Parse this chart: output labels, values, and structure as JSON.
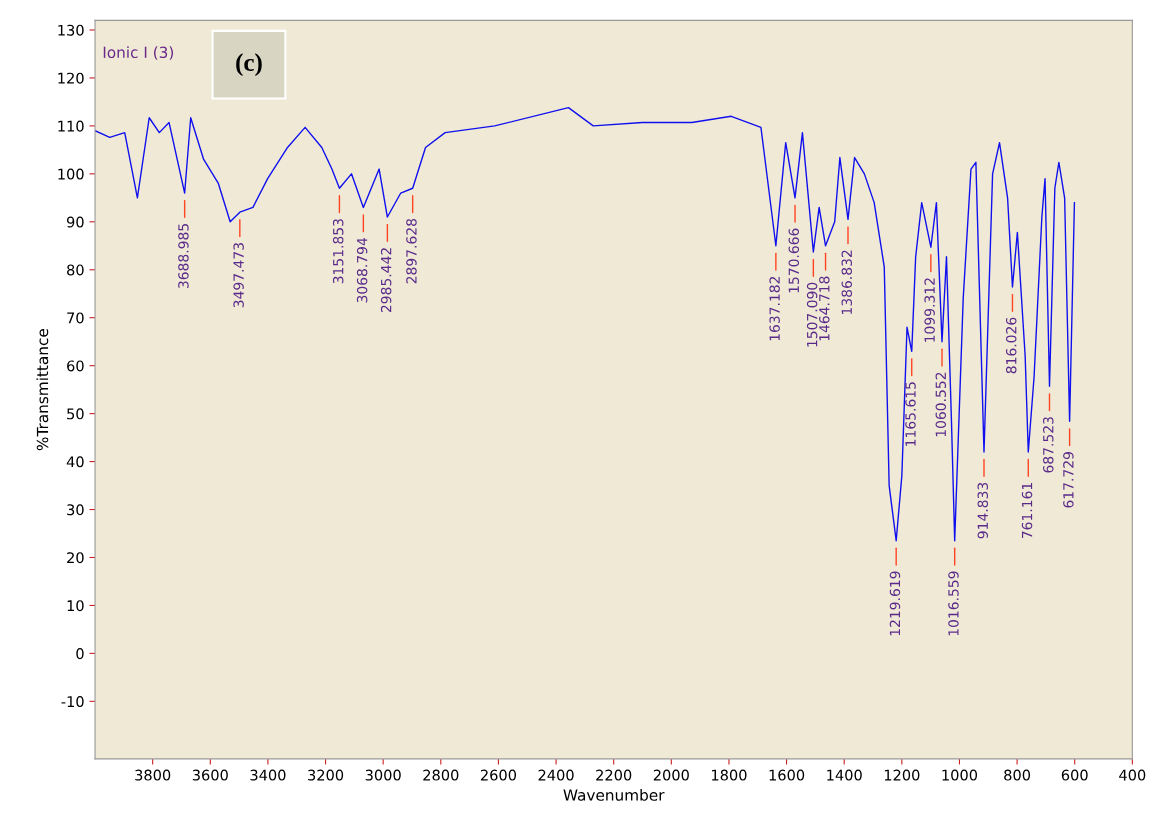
{
  "chart_data": {
    "type": "line",
    "xlabel": "Wavenumber",
    "ylabel": "%Transmittance",
    "xlim": [
      4000,
      400
    ],
    "ylim": [
      -22,
      132
    ],
    "xticks": [
      3800,
      3600,
      3400,
      3200,
      3000,
      2800,
      2600,
      2400,
      2200,
      2000,
      1800,
      1600,
      1400,
      1200,
      1000,
      800,
      600,
      400
    ],
    "yticks": [
      -10,
      0,
      10,
      20,
      30,
      40,
      50,
      60,
      70,
      80,
      90,
      100,
      110,
      120,
      130
    ],
    "grid": false,
    "legend": false,
    "marker": "none",
    "line_style": "solid",
    "series": [
      {
        "color": "#1010ee",
        "x": [
          4000,
          3949,
          3897,
          3853,
          3812,
          3777,
          3743,
          3688.985,
          3668,
          3623,
          3572,
          3531,
          3497.473,
          3452,
          3401,
          3332,
          3271,
          3213,
          3178,
          3151.853,
          3110,
          3068.794,
          3014,
          2985.442,
          2939,
          2897.628,
          2853,
          2785,
          2613,
          2357,
          2271,
          2100,
          1929,
          1792,
          1689,
          1637.182,
          1603,
          1570.666,
          1545,
          1507.09,
          1487,
          1464.718,
          1433,
          1415,
          1386.832,
          1364,
          1330,
          1296,
          1261,
          1244,
          1219.619,
          1200,
          1182,
          1165.615,
          1152,
          1131,
          1099.312,
          1080,
          1060.552,
          1045,
          1028,
          1016.559,
          987,
          960,
          943,
          914.833,
          885,
          861,
          833,
          816.026,
          799,
          772,
          761.161,
          741,
          714,
          703,
          687.523,
          669,
          655,
          635,
          617.729,
          601
        ],
        "values": [
          109,
          107.6,
          108.6,
          95,
          111.7,
          108.6,
          110.7,
          96,
          111.7,
          103,
          98,
          90,
          92,
          93,
          99,
          105.5,
          109.7,
          105.5,
          101,
          97,
          100,
          93,
          101,
          91,
          96,
          97,
          105.5,
          108.6,
          110,
          113.8,
          110,
          110.7,
          110.7,
          112,
          109.7,
          85,
          106.5,
          95,
          108.6,
          83.7,
          93,
          85,
          90,
          103.4,
          90.5,
          103.4,
          100,
          94,
          80.6,
          35,
          23.5,
          37,
          68,
          63,
          82.7,
          94,
          84.7,
          94,
          65,
          82.7,
          49,
          23.5,
          74,
          101,
          102.4,
          42,
          100,
          106.5,
          95,
          76.4,
          87.8,
          62,
          42,
          57.7,
          91,
          99,
          55.7,
          97,
          102.4,
          95,
          48.4,
          94
        ]
      }
    ],
    "annotations": [
      "Ionic I (3)",
      "(c)",
      {
        "text": "3688.985",
        "x": 3688.985,
        "y": 96
      },
      {
        "text": "3497.473",
        "x": 3497.473,
        "y": 92
      },
      {
        "text": "3151.853",
        "x": 3151.853,
        "y": 97
      },
      {
        "text": "3068.794",
        "x": 3068.794,
        "y": 93
      },
      {
        "text": "2985.442",
        "x": 2985.442,
        "y": 91
      },
      {
        "text": "2897.628",
        "x": 2897.628,
        "y": 97
      },
      {
        "text": "1637.182",
        "x": 1637.182,
        "y": 85
      },
      {
        "text": "1570.666",
        "x": 1570.666,
        "y": 95
      },
      {
        "text": "1507.090",
        "x": 1507.09,
        "y": 83.7
      },
      {
        "text": "1464.718",
        "x": 1464.718,
        "y": 85
      },
      {
        "text": "1386.832",
        "x": 1386.832,
        "y": 90.5
      },
      {
        "text": "1219.619",
        "x": 1219.619,
        "y": 23.5
      },
      {
        "text": "1165.615",
        "x": 1165.615,
        "y": 63
      },
      {
        "text": "1099.312",
        "x": 1099.312,
        "y": 84.7
      },
      {
        "text": "1060.552",
        "x": 1060.552,
        "y": 65
      },
      {
        "text": "1016.559",
        "x": 1016.559,
        "y": 23.5
      },
      {
        "text": "914.833",
        "x": 914.833,
        "y": 42
      },
      {
        "text": "816.026",
        "x": 816.026,
        "y": 76.4
      },
      {
        "text": "761.161",
        "x": 761.161,
        "y": 42
      },
      {
        "text": "687.523",
        "x": 687.523,
        "y": 55.7
      },
      {
        "text": "617.729",
        "x": 617.729,
        "y": 48.4
      }
    ]
  }
}
